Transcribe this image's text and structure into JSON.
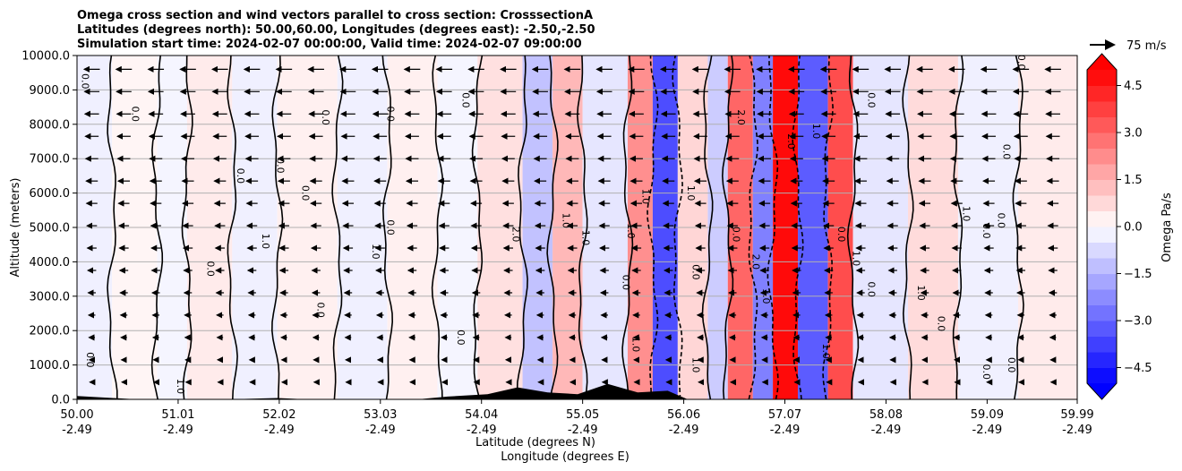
{
  "chart_data": {
    "type": "heatmap",
    "title_lines": [
      "Omega cross section and wind vectors parallel to cross section: CrosssectionA",
      "Latitudes (degrees north): 50.00,60.00, Longitudes (degrees east): -2.50,-2.50",
      "Simulation start time: 2024-02-07 00:00:00, Valid time: 2024-02-07 09:00:00"
    ],
    "xlabel_lines": [
      "Latitude (degrees N)",
      "Longitude (degrees E)"
    ],
    "ylabel": "Altitude (meters)",
    "xlim": [
      50.0,
      59.99
    ],
    "ylim": [
      0,
      10000
    ],
    "x_ticks": [
      {
        "lat": "50.00",
        "lon": "-2.49",
        "value": 50.0
      },
      {
        "lat": "51.01",
        "lon": "-2.49",
        "value": 51.01
      },
      {
        "lat": "52.02",
        "lon": "-2.49",
        "value": 52.02
      },
      {
        "lat": "53.03",
        "lon": "-2.49",
        "value": 53.03
      },
      {
        "lat": "54.04",
        "lon": "-2.49",
        "value": 54.04
      },
      {
        "lat": "55.05",
        "lon": "-2.49",
        "value": 55.05
      },
      {
        "lat": "56.06",
        "lon": "-2.49",
        "value": 56.06
      },
      {
        "lat": "57.07",
        "lon": "-2.49",
        "value": 57.07
      },
      {
        "lat": "58.08",
        "lon": "-2.49",
        "value": 58.08
      },
      {
        "lat": "59.09",
        "lon": "-2.49",
        "value": 59.09
      },
      {
        "lat": "59.99",
        "lon": "-2.49",
        "value": 59.99
      }
    ],
    "y_ticks": [
      {
        "label": "0.0",
        "value": 0
      },
      {
        "label": "1000.0",
        "value": 1000
      },
      {
        "label": "2000.0",
        "value": 2000
      },
      {
        "label": "3000.0",
        "value": 3000
      },
      {
        "label": "4000.0",
        "value": 4000
      },
      {
        "label": "5000.0",
        "value": 5000
      },
      {
        "label": "6000.0",
        "value": 6000
      },
      {
        "label": "7000.0",
        "value": 7000
      },
      {
        "label": "8000.0",
        "value": 8000
      },
      {
        "label": "9000.0",
        "value": 9000
      },
      {
        "label": "10000.0",
        "value": 10000
      }
    ],
    "grid": true,
    "colorbar": {
      "label": "Omega Pa/s",
      "range": [
        -5.0,
        5.0
      ],
      "ticks": [
        {
          "label": "4.5",
          "value": 4.5
        },
        {
          "label": "3.0",
          "value": 3.0
        },
        {
          "label": "1.5",
          "value": 1.5
        },
        {
          "label": "0.0",
          "value": 0.0
        },
        {
          "label": "−1.5",
          "value": -1.5
        },
        {
          "label": "−3.0",
          "value": -3.0
        },
        {
          "label": "−4.5",
          "value": -4.5
        }
      ],
      "extend": "both",
      "colormap": "bwr"
    },
    "quiver_key": {
      "label": "75 m/s",
      "speed": 75
    },
    "wind_description": "Wind vectors point mostly toward decreasing latitude (southward) aloft, weak near the surface",
    "bands": [
      {
        "lat_start": 50.0,
        "lat_end": 50.35,
        "omega": -0.3
      },
      {
        "lat_start": 50.35,
        "lat_end": 50.8,
        "omega": 0.2
      },
      {
        "lat_start": 50.8,
        "lat_end": 51.1,
        "omega": -0.2
      },
      {
        "lat_start": 51.1,
        "lat_end": 51.55,
        "omega": 0.4
      },
      {
        "lat_start": 51.55,
        "lat_end": 52.0,
        "omega": -0.3
      },
      {
        "lat_start": 52.0,
        "lat_end": 52.6,
        "omega": 0.3
      },
      {
        "lat_start": 52.6,
        "lat_end": 53.1,
        "omega": -0.3
      },
      {
        "lat_start": 53.1,
        "lat_end": 53.6,
        "omega": 0.3
      },
      {
        "lat_start": 53.6,
        "lat_end": 54.0,
        "omega": -0.2
      },
      {
        "lat_start": 54.0,
        "lat_end": 54.45,
        "omega": 0.6
      },
      {
        "lat_start": 54.45,
        "lat_end": 54.75,
        "omega": -1.2
      },
      {
        "lat_start": 54.75,
        "lat_end": 55.05,
        "omega": 1.4
      },
      {
        "lat_start": 55.05,
        "lat_end": 55.5,
        "omega": -0.5
      },
      {
        "lat_start": 55.5,
        "lat_end": 55.75,
        "omega": 2.2
      },
      {
        "lat_start": 55.75,
        "lat_end": 56.0,
        "omega": -3.5
      },
      {
        "lat_start": 56.0,
        "lat_end": 56.3,
        "omega": 0.8
      },
      {
        "lat_start": 56.3,
        "lat_end": 56.5,
        "omega": -1.0
      },
      {
        "lat_start": 56.5,
        "lat_end": 56.75,
        "omega": 3.0
      },
      {
        "lat_start": 56.75,
        "lat_end": 56.95,
        "omega": -2.5
      },
      {
        "lat_start": 56.95,
        "lat_end": 57.2,
        "omega": 4.8
      },
      {
        "lat_start": 57.2,
        "lat_end": 57.5,
        "omega": -3.2
      },
      {
        "lat_start": 57.5,
        "lat_end": 57.75,
        "omega": 3.5
      },
      {
        "lat_start": 57.75,
        "lat_end": 58.3,
        "omega": -0.5
      },
      {
        "lat_start": 58.3,
        "lat_end": 58.8,
        "omega": 0.7
      },
      {
        "lat_start": 58.8,
        "lat_end": 59.4,
        "omega": -0.3
      },
      {
        "lat_start": 59.4,
        "lat_end": 59.99,
        "omega": 0.4
      }
    ],
    "terrain_profile": [
      {
        "lat": 50.0,
        "height": 100
      },
      {
        "lat": 50.6,
        "height": 0
      },
      {
        "lat": 51.5,
        "height": 0
      },
      {
        "lat": 52.0,
        "height": 40
      },
      {
        "lat": 52.3,
        "height": 0
      },
      {
        "lat": 53.4,
        "height": 0
      },
      {
        "lat": 53.7,
        "height": 80
      },
      {
        "lat": 54.1,
        "height": 150
      },
      {
        "lat": 54.4,
        "height": 350
      },
      {
        "lat": 54.7,
        "height": 200
      },
      {
        "lat": 55.0,
        "height": 150
      },
      {
        "lat": 55.3,
        "height": 450
      },
      {
        "lat": 55.6,
        "height": 200
      },
      {
        "lat": 55.9,
        "height": 250
      },
      {
        "lat": 56.1,
        "height": 0
      },
      {
        "lat": 59.99,
        "height": 0
      }
    ],
    "contour_labels": [
      {
        "text": "0.0",
        "lat": 50.1,
        "alt": 1150
      },
      {
        "text": "1.0",
        "lat": 51.0,
        "alt": 380
      },
      {
        "text": "0.0",
        "lat": 50.05,
        "alt": 9250
      },
      {
        "text": "0.0",
        "lat": 50.55,
        "alt": 8300
      },
      {
        "text": "0.0",
        "lat": 51.3,
        "alt": 3800
      },
      {
        "text": "0.0",
        "lat": 51.6,
        "alt": 6500
      },
      {
        "text": "1.0",
        "lat": 51.85,
        "alt": 4600
      },
      {
        "text": "0.0",
        "lat": 52.0,
        "alt": 6800
      },
      {
        "text": "0.0",
        "lat": 52.25,
        "alt": 6000
      },
      {
        "text": "0.0",
        "lat": 52.4,
        "alt": 2600
      },
      {
        "text": "0.0",
        "lat": 52.45,
        "alt": 8200
      },
      {
        "text": "1.0",
        "lat": 52.95,
        "alt": 4300
      },
      {
        "text": "0.0",
        "lat": 53.1,
        "alt": 8300
      },
      {
        "text": "0.0",
        "lat": 53.1,
        "alt": 5000
      },
      {
        "text": "0.0",
        "lat": 53.85,
        "alt": 8700
      },
      {
        "text": "0.0",
        "lat": 53.8,
        "alt": 1800
      },
      {
        "text": "2.0",
        "lat": 54.35,
        "alt": 4800
      },
      {
        "text": "1.0",
        "lat": 54.85,
        "alt": 5200
      },
      {
        "text": "1.0",
        "lat": 55.05,
        "alt": 4700
      },
      {
        "text": "1.0",
        "lat": 55.5,
        "alt": 4900
      },
      {
        "text": "0.0",
        "lat": 55.45,
        "alt": 3400
      },
      {
        "text": "1.0",
        "lat": 55.55,
        "alt": 1600
      },
      {
        "text": "1.0",
        "lat": 55.65,
        "alt": 5900
      },
      {
        "text": "1.0",
        "lat": 56.1,
        "alt": 6000
      },
      {
        "text": "0.0",
        "lat": 56.15,
        "alt": 3700
      },
      {
        "text": "1.0",
        "lat": 56.15,
        "alt": 1000
      },
      {
        "text": "0.0",
        "lat": 56.55,
        "alt": 4800
      },
      {
        "text": "2.0",
        "lat": 56.6,
        "alt": 8200
      },
      {
        "text": "2.0",
        "lat": 56.75,
        "alt": 4000
      },
      {
        "text": "1.0",
        "lat": 56.85,
        "alt": 3000
      },
      {
        "text": "2.0",
        "lat": 57.1,
        "alt": 7500
      },
      {
        "text": "1.0",
        "lat": 57.35,
        "alt": 7800
      },
      {
        "text": "1.0",
        "lat": 57.45,
        "alt": 1400
      },
      {
        "text": "0.0",
        "lat": 57.6,
        "alt": 4800
      },
      {
        "text": "1.0",
        "lat": 57.75,
        "alt": 4100
      },
      {
        "text": "0.0",
        "lat": 57.9,
        "alt": 3200
      },
      {
        "text": "0.0",
        "lat": 57.9,
        "alt": 8700
      },
      {
        "text": "1.0",
        "lat": 58.4,
        "alt": 3100
      },
      {
        "text": "0.0",
        "lat": 58.6,
        "alt": 2200
      },
      {
        "text": "1.0",
        "lat": 58.85,
        "alt": 5400
      },
      {
        "text": "0.0",
        "lat": 59.05,
        "alt": 4900
      },
      {
        "text": "0.0",
        "lat": 59.05,
        "alt": 800
      },
      {
        "text": "0.0",
        "lat": 59.3,
        "alt": 1000
      },
      {
        "text": "0.0",
        "lat": 59.2,
        "alt": 5200
      },
      {
        "text": "0.0",
        "lat": 59.4,
        "alt": 9800
      },
      {
        "text": "0.0",
        "lat": 59.25,
        "alt": 7200
      }
    ]
  }
}
